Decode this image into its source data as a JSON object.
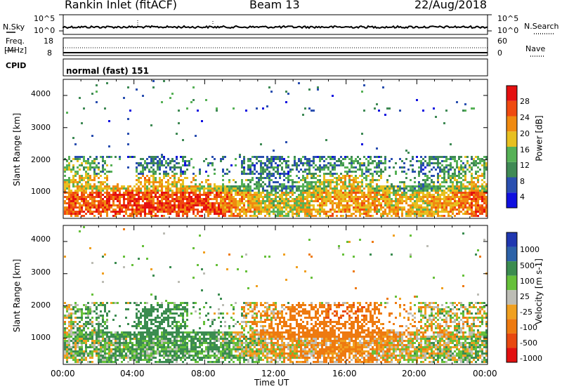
{
  "header": {
    "station": "Rankin Inlet (fitACF)",
    "beam": "Beam 13",
    "date": "22/Aug/2018"
  },
  "top_panels": {
    "nsky_label": "N.Sky",
    "nsky_ticks": [
      "10^5",
      "10^0"
    ],
    "nsearch_label": "N.Search",
    "freq_label_1": "Freq.",
    "freq_label_2": "[MHz]",
    "freq_ticks": [
      "18",
      "8"
    ],
    "nave_ticks": [
      "60",
      "0"
    ],
    "nave_label": "Nave",
    "cpid_label": "CPID",
    "cpid_text": "normal (fast) 151"
  },
  "axes": {
    "ylabel": "Slant Range [km]",
    "xlabel": "Time UT",
    "yticks": [
      "4000",
      "3000",
      "2000",
      "1000"
    ],
    "xticks": [
      "00:00",
      "04:00",
      "08:00",
      "12:00",
      "16:00",
      "20:00",
      "00:00"
    ]
  },
  "colors": {
    "power_scale": [
      "#1010e0",
      "#2a4fb0",
      "#3f8a55",
      "#56b156",
      "#e8c020",
      "#f08a10",
      "#f04a10",
      "#e51010"
    ],
    "velocity_scale": [
      "#2037b0",
      "#2c62a8",
      "#3b8c50",
      "#66c03a",
      "#bdbdb5",
      "#f0a020",
      "#ee7a10",
      "#e84810",
      "#e21010"
    ]
  },
  "chart_data": [
    {
      "type": "heatmap",
      "title": "Power",
      "colorbar_label": "Power [dB]",
      "colorbar_ticks": [
        "28",
        "24",
        "20",
        "16",
        "12",
        "8",
        "4"
      ],
      "xlim": [
        "00:00",
        "24:00"
      ],
      "ylim": [
        180,
        4500
      ],
      "x": [
        "00:00",
        "04:00",
        "08:00",
        "12:00",
        "16:00",
        "20:00",
        "24:00"
      ],
      "y_range_km": [
        400,
        1000,
        1500,
        2000,
        3500
      ],
      "values_db": [
        [
          25,
          26,
          27,
          16,
          22,
          18,
          26
        ],
        [
          17,
          20,
          18,
          8,
          20,
          10,
          20
        ],
        [
          14,
          10,
          8,
          8,
          12,
          8,
          14
        ],
        [
          12,
          6,
          6,
          10,
          8,
          6,
          14
        ],
        [
          8,
          10,
          12,
          6,
          8,
          6,
          10
        ]
      ]
    },
    {
      "type": "heatmap",
      "title": "Velocity",
      "colorbar_label": "Velocity [m s-1]",
      "colorbar_ticks": [
        "1000",
        "500",
        "100",
        "25",
        "-25",
        "-100",
        "-500",
        "-1000"
      ],
      "xlim": [
        "00:00",
        "24:00"
      ],
      "ylim": [
        180,
        4500
      ],
      "x": [
        "00:00",
        "04:00",
        "08:00",
        "12:00",
        "16:00",
        "20:00",
        "24:00"
      ],
      "y_range_km": [
        400,
        1000,
        1500,
        2000,
        3500
      ],
      "values_ms": [
        [
          50,
          100,
          150,
          -50,
          -150,
          0,
          50
        ],
        [
          10,
          200,
          200,
          -200,
          -300,
          -50,
          10
        ],
        [
          0,
          300,
          100,
          -100,
          -500,
          0,
          0
        ],
        [
          0,
          100,
          50,
          0,
          -100,
          0,
          0
        ],
        [
          0,
          0,
          0,
          -50,
          0,
          0,
          0
        ]
      ]
    }
  ]
}
